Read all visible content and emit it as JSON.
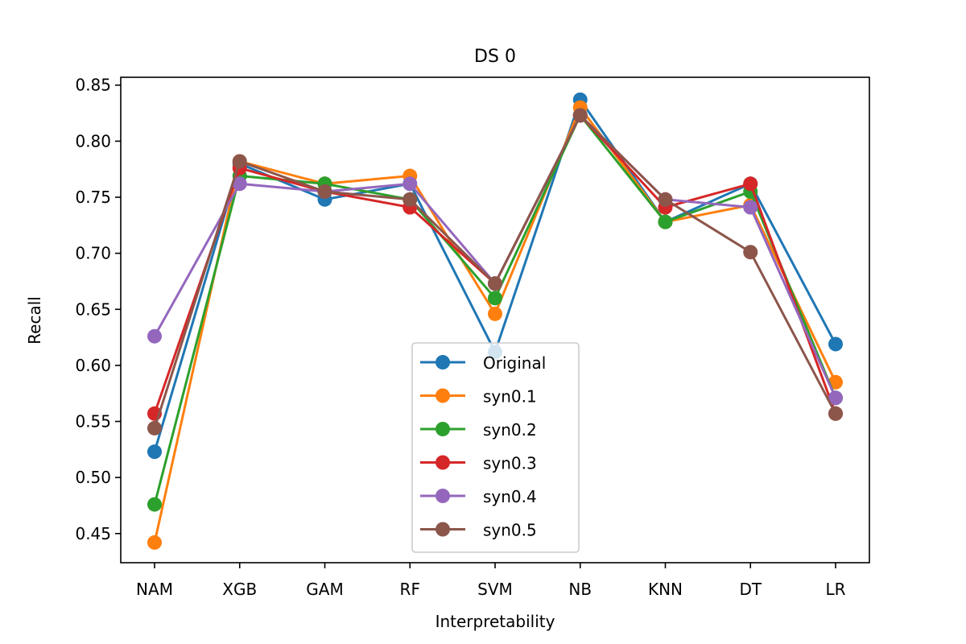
{
  "chart_data": {
    "type": "line",
    "title": "DS 0",
    "xlabel": "Interpretability",
    "ylabel": "Recall",
    "categories": [
      "NAM",
      "XGB",
      "GAM",
      "RF",
      "SVM",
      "NB",
      "KNN",
      "DT",
      "LR"
    ],
    "ylim": [
      0.424,
      0.857
    ],
    "yticks": [
      0.45,
      0.5,
      0.55,
      0.6,
      0.65,
      0.7,
      0.75,
      0.8,
      0.85
    ],
    "ytick_labels": [
      "0.45",
      "0.50",
      "0.55",
      "0.60",
      "0.65",
      "0.70",
      "0.75",
      "0.80",
      "0.85"
    ],
    "grid": false,
    "legend_position": "bottom-center",
    "series": [
      {
        "name": "Original",
        "color": "#1f77b4",
        "values": [
          0.523,
          0.78,
          0.748,
          0.762,
          0.612,
          0.837,
          0.728,
          0.762,
          0.619
        ]
      },
      {
        "name": "syn0.1",
        "color": "#ff7f0e",
        "values": [
          0.442,
          0.782,
          0.762,
          0.769,
          0.646,
          0.83,
          0.728,
          0.743,
          0.585
        ]
      },
      {
        "name": "syn0.2",
        "color": "#2ca02c",
        "values": [
          0.476,
          0.769,
          0.762,
          0.748,
          0.66,
          0.823,
          0.728,
          0.755,
          0.571
        ]
      },
      {
        "name": "syn0.3",
        "color": "#d62728",
        "values": [
          0.557,
          0.776,
          0.755,
          0.741,
          0.673,
          0.823,
          0.741,
          0.762,
          0.557
        ]
      },
      {
        "name": "syn0.4",
        "color": "#9467bd",
        "values": [
          0.626,
          0.762,
          0.755,
          0.762,
          0.673,
          0.823,
          0.748,
          0.741,
          0.571
        ]
      },
      {
        "name": "syn0.5",
        "color": "#8c564b",
        "values": [
          0.544,
          0.782,
          0.755,
          0.748,
          0.673,
          0.823,
          0.748,
          0.701,
          0.557
        ]
      }
    ]
  }
}
